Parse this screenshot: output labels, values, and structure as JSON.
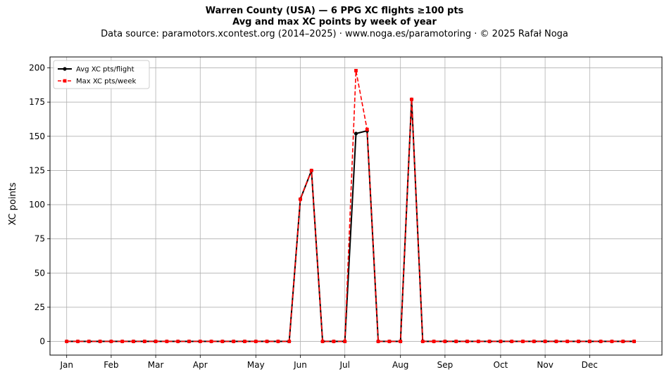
{
  "header": {
    "title": "Warren County (USA)  —  6 PPG XC flights ≥100 pts",
    "subtitle": "Avg and max XC points by week of year",
    "source": "Data source: paramotors.xcontest.org (2014–2025)  ·  www.noga.es/paramotoring  ·  © 2025 Rafał Noga"
  },
  "chart_data": {
    "type": "line",
    "title": "Warren County (USA)  —  6 PPG XC flights ≥100 pts",
    "subtitle": "Avg and max XC points by week of year",
    "xlabel": "",
    "ylabel": "XC points",
    "x": [
      1,
      2,
      3,
      4,
      5,
      6,
      7,
      8,
      9,
      10,
      11,
      12,
      13,
      14,
      15,
      16,
      17,
      18,
      19,
      20,
      21,
      22,
      23,
      24,
      25,
      26,
      27,
      28,
      29,
      30,
      31,
      32,
      33,
      34,
      35,
      36,
      37,
      38,
      39,
      40,
      41,
      42,
      43,
      44,
      45,
      46,
      47,
      48,
      49,
      50,
      51,
      52
    ],
    "xlim": [
      -0.5,
      54.5
    ],
    "ylim": [
      -10,
      208
    ],
    "x_ticks": [
      {
        "x": 1,
        "label": "Jan"
      },
      {
        "x": 5,
        "label": "Feb"
      },
      {
        "x": 9,
        "label": "Mar"
      },
      {
        "x": 13,
        "label": "Apr"
      },
      {
        "x": 18,
        "label": "May"
      },
      {
        "x": 22,
        "label": "Jun"
      },
      {
        "x": 26,
        "label": "Jul"
      },
      {
        "x": 31,
        "label": "Aug"
      },
      {
        "x": 35,
        "label": "Sep"
      },
      {
        "x": 40,
        "label": "Oct"
      },
      {
        "x": 44,
        "label": "Nov"
      },
      {
        "x": 48,
        "label": "Dec"
      }
    ],
    "y_ticks": [
      0,
      25,
      50,
      75,
      100,
      125,
      150,
      175,
      200
    ],
    "grid": true,
    "legend_position": "top-left",
    "series": [
      {
        "name": "Avg XC pts/flight",
        "color": "#000000",
        "style": "solid",
        "marker": "circle",
        "values": [
          0,
          0,
          0,
          0,
          0,
          0,
          0,
          0,
          0,
          0,
          0,
          0,
          0,
          0,
          0,
          0,
          0,
          0,
          0,
          0,
          0,
          104,
          125,
          0,
          0,
          0,
          152,
          154,
          0,
          0,
          0,
          177,
          0,
          0,
          0,
          0,
          0,
          0,
          0,
          0,
          0,
          0,
          0,
          0,
          0,
          0,
          0,
          0,
          0,
          0,
          0,
          0
        ]
      },
      {
        "name": "Max XC pts/week",
        "color": "#ff0000",
        "style": "dashed",
        "marker": "square",
        "values": [
          0,
          0,
          0,
          0,
          0,
          0,
          0,
          0,
          0,
          0,
          0,
          0,
          0,
          0,
          0,
          0,
          0,
          0,
          0,
          0,
          0,
          104,
          125,
          0,
          0,
          0,
          198,
          155,
          0,
          0,
          0,
          177,
          0,
          0,
          0,
          0,
          0,
          0,
          0,
          0,
          0,
          0,
          0,
          0,
          0,
          0,
          0,
          0,
          0,
          0,
          0,
          0
        ]
      }
    ]
  }
}
